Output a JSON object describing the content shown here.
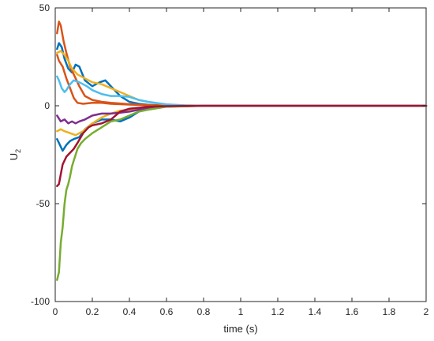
{
  "chart_data": {
    "type": "line",
    "title": "",
    "xlabel": "time (s)",
    "ylabel_main": "U",
    "ylabel_sub": "2",
    "xlim": [
      0,
      2
    ],
    "ylim": [
      -100,
      50
    ],
    "xticks": [
      0,
      0.2,
      0.4,
      0.6,
      0.8,
      1,
      1.2,
      1.4,
      1.6,
      1.8,
      2
    ],
    "xtick_labels": [
      "0",
      "0.2",
      "0.4",
      "0.6",
      "0.8",
      "1",
      "1.2",
      "1.4",
      "1.6",
      "1.8",
      "2"
    ],
    "yticks": [
      50,
      0,
      -50,
      -100
    ],
    "ytick_labels": [
      "50",
      "0",
      "-50",
      "-100"
    ],
    "grid": false,
    "legend": "none",
    "series": [
      {
        "color": "#0072BD",
        "points": [
          [
            0.01,
            29
          ],
          [
            0.02,
            32
          ],
          [
            0.035,
            30
          ],
          [
            0.05,
            24
          ],
          [
            0.07,
            19
          ],
          [
            0.09,
            17
          ],
          [
            0.11,
            21
          ],
          [
            0.13,
            20
          ],
          [
            0.16,
            13
          ],
          [
            0.2,
            10
          ],
          [
            0.24,
            12
          ],
          [
            0.27,
            13
          ],
          [
            0.3,
            10
          ],
          [
            0.35,
            5
          ],
          [
            0.4,
            2
          ],
          [
            0.45,
            1
          ],
          [
            0.5,
            0.5
          ],
          [
            0.6,
            0.1
          ],
          [
            0.8,
            0
          ],
          [
            2,
            0
          ]
        ]
      },
      {
        "color": "#0072BD",
        "points": [
          [
            0.01,
            -17
          ],
          [
            0.02,
            -19
          ],
          [
            0.04,
            -23
          ],
          [
            0.06,
            -20
          ],
          [
            0.08,
            -18
          ],
          [
            0.1,
            -17
          ],
          [
            0.13,
            -16
          ],
          [
            0.16,
            -12
          ],
          [
            0.2,
            -9
          ],
          [
            0.25,
            -7
          ],
          [
            0.3,
            -7
          ],
          [
            0.35,
            -8
          ],
          [
            0.4,
            -6
          ],
          [
            0.45,
            -3
          ],
          [
            0.5,
            -1.5
          ],
          [
            0.6,
            -0.3
          ],
          [
            0.8,
            0
          ],
          [
            2,
            0
          ]
        ]
      },
      {
        "color": "#D95319",
        "points": [
          [
            0.01,
            37
          ],
          [
            0.02,
            43
          ],
          [
            0.03,
            41
          ],
          [
            0.045,
            33
          ],
          [
            0.06,
            27
          ],
          [
            0.08,
            20
          ],
          [
            0.1,
            16
          ],
          [
            0.13,
            10
          ],
          [
            0.16,
            5
          ],
          [
            0.2,
            3
          ],
          [
            0.25,
            2
          ],
          [
            0.3,
            1.5
          ],
          [
            0.4,
            0.8
          ],
          [
            0.5,
            0.3
          ],
          [
            0.6,
            0.1
          ],
          [
            0.8,
            0
          ],
          [
            2,
            0
          ]
        ]
      },
      {
        "color": "#D95319",
        "points": [
          [
            0.01,
            26
          ],
          [
            0.02,
            23
          ],
          [
            0.04,
            20
          ],
          [
            0.06,
            14
          ],
          [
            0.08,
            9
          ],
          [
            0.1,
            4
          ],
          [
            0.12,
            1.5
          ],
          [
            0.15,
            1
          ],
          [
            0.2,
            1.5
          ],
          [
            0.25,
            1.5
          ],
          [
            0.3,
            1
          ],
          [
            0.4,
            0.6
          ],
          [
            0.5,
            0.3
          ],
          [
            0.6,
            0.1
          ],
          [
            0.8,
            0
          ],
          [
            2,
            0
          ]
        ]
      },
      {
        "color": "#EDB120",
        "points": [
          [
            0.01,
            27
          ],
          [
            0.03,
            28
          ],
          [
            0.05,
            26
          ],
          [
            0.07,
            23
          ],
          [
            0.09,
            19
          ],
          [
            0.12,
            16
          ],
          [
            0.16,
            14
          ],
          [
            0.2,
            12
          ],
          [
            0.25,
            11
          ],
          [
            0.3,
            9
          ],
          [
            0.35,
            7
          ],
          [
            0.4,
            5
          ],
          [
            0.45,
            3
          ],
          [
            0.5,
            2
          ],
          [
            0.6,
            0.6
          ],
          [
            0.7,
            0.2
          ],
          [
            0.8,
            0
          ],
          [
            2,
            0
          ]
        ]
      },
      {
        "color": "#EDB120",
        "points": [
          [
            0.01,
            -13
          ],
          [
            0.03,
            -12
          ],
          [
            0.05,
            -13
          ],
          [
            0.08,
            -14
          ],
          [
            0.11,
            -15
          ],
          [
            0.15,
            -13
          ],
          [
            0.2,
            -9
          ],
          [
            0.25,
            -6
          ],
          [
            0.3,
            -4
          ],
          [
            0.35,
            -2.5
          ],
          [
            0.4,
            -2
          ],
          [
            0.45,
            -1.5
          ],
          [
            0.5,
            -1
          ],
          [
            0.6,
            -0.4
          ],
          [
            0.8,
            0
          ],
          [
            2,
            0
          ]
        ]
      },
      {
        "color": "#7E2F8E",
        "points": [
          [
            0.01,
            -5
          ],
          [
            0.03,
            -8
          ],
          [
            0.05,
            -7
          ],
          [
            0.07,
            -9
          ],
          [
            0.09,
            -8
          ],
          [
            0.11,
            -9
          ],
          [
            0.13,
            -8
          ],
          [
            0.16,
            -7
          ],
          [
            0.2,
            -5
          ],
          [
            0.25,
            -4
          ],
          [
            0.3,
            -4
          ],
          [
            0.35,
            -3.5
          ],
          [
            0.4,
            -3
          ],
          [
            0.45,
            -2
          ],
          [
            0.5,
            -1.2
          ],
          [
            0.6,
            -0.4
          ],
          [
            0.8,
            0
          ],
          [
            2,
            0
          ]
        ]
      },
      {
        "color": "#77AC30",
        "points": [
          [
            0.01,
            -89
          ],
          [
            0.02,
            -85
          ],
          [
            0.03,
            -70
          ],
          [
            0.04,
            -62
          ],
          [
            0.05,
            -50
          ],
          [
            0.06,
            -43
          ],
          [
            0.07,
            -40
          ],
          [
            0.08,
            -36
          ],
          [
            0.09,
            -31
          ],
          [
            0.1,
            -28
          ],
          [
            0.12,
            -22
          ],
          [
            0.14,
            -19
          ],
          [
            0.16,
            -17
          ],
          [
            0.2,
            -14
          ],
          [
            0.25,
            -11
          ],
          [
            0.3,
            -8
          ],
          [
            0.35,
            -7
          ],
          [
            0.4,
            -5
          ],
          [
            0.45,
            -3
          ],
          [
            0.5,
            -2
          ],
          [
            0.6,
            -0.5
          ],
          [
            0.8,
            0
          ],
          [
            2,
            0
          ]
        ]
      },
      {
        "color": "#4DBEEE",
        "points": [
          [
            0.01,
            15
          ],
          [
            0.02,
            13
          ],
          [
            0.035,
            9
          ],
          [
            0.05,
            7
          ],
          [
            0.06,
            8
          ],
          [
            0.08,
            11
          ],
          [
            0.1,
            13
          ],
          [
            0.13,
            12
          ],
          [
            0.17,
            10
          ],
          [
            0.2,
            8
          ],
          [
            0.25,
            6
          ],
          [
            0.3,
            5
          ],
          [
            0.35,
            5
          ],
          [
            0.4,
            4.5
          ],
          [
            0.45,
            3
          ],
          [
            0.5,
            2
          ],
          [
            0.6,
            0.7
          ],
          [
            0.7,
            0.2
          ],
          [
            0.8,
            0
          ],
          [
            2,
            0
          ]
        ]
      },
      {
        "color": "#A2142F",
        "points": [
          [
            0.01,
            -41
          ],
          [
            0.02,
            -40
          ],
          [
            0.03,
            -35
          ],
          [
            0.04,
            -30
          ],
          [
            0.06,
            -26
          ],
          [
            0.08,
            -24
          ],
          [
            0.1,
            -22
          ],
          [
            0.12,
            -19
          ],
          [
            0.15,
            -14
          ],
          [
            0.18,
            -11
          ],
          [
            0.2,
            -10
          ],
          [
            0.25,
            -9
          ],
          [
            0.3,
            -7
          ],
          [
            0.35,
            -3
          ],
          [
            0.4,
            -1.5
          ],
          [
            0.45,
            -1
          ],
          [
            0.5,
            -0.5
          ],
          [
            0.6,
            -0.2
          ],
          [
            0.8,
            0
          ],
          [
            2,
            0
          ]
        ]
      }
    ]
  }
}
